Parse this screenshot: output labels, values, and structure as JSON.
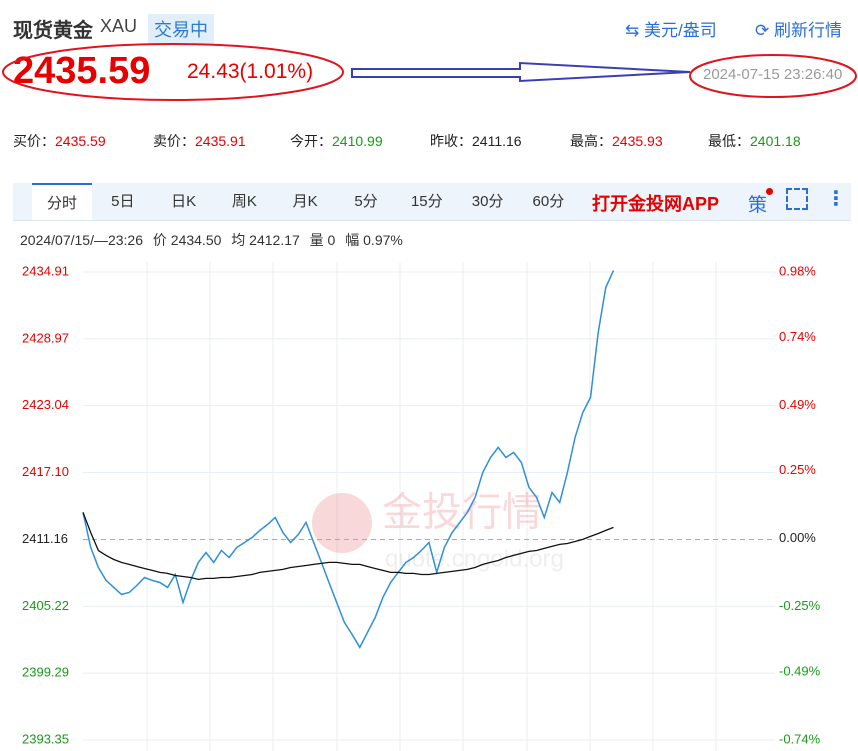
{
  "header": {
    "title": "现货黄金",
    "code": "XAU",
    "status": "交易中",
    "unit_link": "美元/盎司",
    "refresh": "刷新行情",
    "price": "2435.59",
    "change": "24.43(1.01%)",
    "time": "2024-07-15 23:26:40"
  },
  "quotes": [
    {
      "label": "买价：",
      "value": "2435.59",
      "color": "#e60000"
    },
    {
      "label": "卖价：",
      "value": "2435.91",
      "color": "#e60000"
    },
    {
      "label": "今开：",
      "value": "2410.99",
      "color": "#1a9a1a"
    },
    {
      "label": "昨收：",
      "value": "2411.16",
      "color": "#222222"
    },
    {
      "label": "最高：",
      "value": "2435.93",
      "color": "#e60000"
    },
    {
      "label": "最低：",
      "value": "2401.18",
      "color": "#1a9a1a"
    }
  ],
  "tabs": [
    "分时",
    "5日",
    "日K",
    "周K",
    "月K",
    "5分",
    "15分",
    "30分",
    "60分"
  ],
  "promo": "打开金投网APP",
  "strategy": "策",
  "info": {
    "time": "2024/07/15/—23:26",
    "price": "价 2434.50",
    "avg": "均 2412.17",
    "volume": "量 0",
    "range": "幅 0.97%"
  },
  "watermark": {
    "brand": "金投行情",
    "url": "quote.cngold.org"
  },
  "chart_data": {
    "type": "line",
    "baseline": 2411.16,
    "up_color": "#e60000",
    "down_color": "#1a9a1a",
    "xlim": [
      0,
      90
    ],
    "ylim": [
      2392.46,
      2435.8
    ],
    "yticks": [
      2434.91,
      2428.97,
      2423.04,
      {
        "value": 2417.1,
        "label": "2417.10"
      },
      2411.16,
      2405.22,
      2399.29,
      2393.35
    ],
    "y2lim": [
      -0.777,
      1.017
    ],
    "y2ticks": [
      {
        "value": 0.98,
        "label": "0.98%"
      },
      {
        "value": 0.74,
        "label": "0.74%"
      },
      {
        "value": 0.49,
        "label": "0.49%"
      },
      {
        "value": 0.25,
        "label": "0.25%"
      },
      {
        "value": 0,
        "label": "0.00%"
      },
      {
        "value": -0.25,
        "label": "-0.25%"
      },
      {
        "value": -0.49,
        "label": "-0.49%"
      },
      {
        "value": -0.74,
        "label": "-0.74%"
      }
    ],
    "series": [
      {
        "color": "#2f8fd8",
        "values": [
          2413.56,
          2410.45,
          2408.67,
          2407.52,
          2406.9,
          2406.28,
          2406.45,
          2407.07,
          2407.78,
          2407.52,
          2407.34,
          2406.9,
          2408.05,
          2405.56,
          2407.52,
          2409.12,
          2410.0,
          2409.12,
          2410.18,
          2409.56,
          2410.45,
          2410.89,
          2411.34,
          2411.96,
          2412.49,
          2413.11,
          2411.78,
          2410.89,
          2411.6,
          2412.67,
          2410.89,
          2409.12,
          2407.34,
          2405.56,
          2403.79,
          2402.72,
          2401.57,
          2402.9,
          2404.23,
          2406.01,
          2407.34,
          2408.23,
          2409.12,
          2409.56,
          2410.18,
          2410.89,
          2408.23,
          2410.45,
          2411.78,
          2412.67,
          2413.56,
          2414.89,
          2417.11,
          2418.44,
          2419.33,
          2418.44,
          2418.89,
          2418.0,
          2415.78,
          2414.89,
          2413.11,
          2415.33,
          2414.45,
          2417.11,
          2420.22,
          2422.44,
          2423.77,
          2429.54,
          2433.54,
          2435.05
        ]
      },
      {
        "color": "#111111",
        "values": [
          2413.56,
          2411.78,
          2410.18,
          2409.74,
          2409.38,
          2409.12,
          2408.94,
          2408.76,
          2408.58,
          2408.41,
          2408.23,
          2408.14,
          2407.96,
          2407.87,
          2407.78,
          2407.61,
          2407.7,
          2407.7,
          2407.78,
          2407.78,
          2407.87,
          2407.96,
          2408.05,
          2408.23,
          2408.32,
          2408.41,
          2408.5,
          2408.67,
          2408.76,
          2408.85,
          2408.94,
          2409.03,
          2409.12,
          2409.12,
          2409.03,
          2408.94,
          2408.94,
          2408.76,
          2408.58,
          2408.41,
          2408.23,
          2408.23,
          2408.14,
          2408.14,
          2408.05,
          2408.05,
          2408.14,
          2408.23,
          2408.32,
          2408.41,
          2408.5,
          2408.67,
          2408.94,
          2409.12,
          2409.29,
          2409.56,
          2409.74,
          2409.92,
          2410.1,
          2410.18,
          2410.36,
          2410.54,
          2410.72,
          2410.8,
          2410.98,
          2411.16,
          2411.43,
          2411.69,
          2411.96,
          2412.23
        ]
      }
    ]
  }
}
